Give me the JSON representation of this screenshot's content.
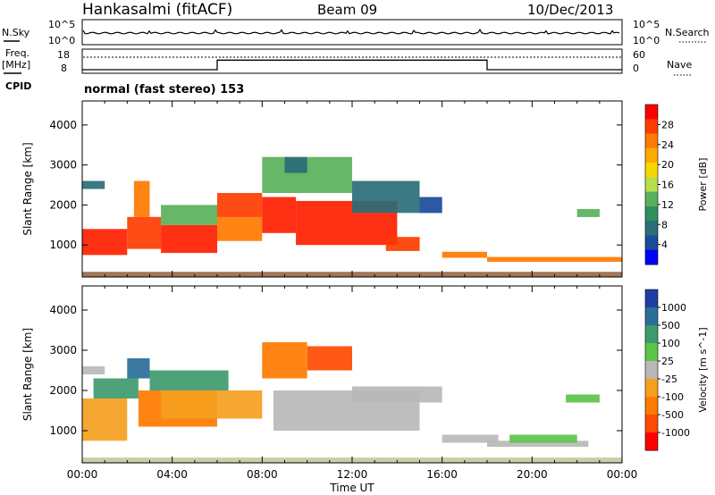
{
  "header": {
    "station": "Hankasalmi (fitACF)",
    "beam": "Beam 09",
    "date": "10/Dec/2013"
  },
  "status_panels": {
    "left_labels": {
      "nsky": "N.Sky",
      "freq": "Freq.",
      "freq_unit": "[MHz]",
      "cpid": "CPID"
    },
    "right_labels": {
      "nsearch": "N.Search",
      "nave": "Nave"
    },
    "noise_ticks_left": [
      "10^5",
      "10^0"
    ],
    "noise_ticks_right": [
      "10^5",
      "10^0"
    ],
    "freq_ticks": [
      "18",
      "8"
    ],
    "nave_ticks": [
      "60",
      "0"
    ],
    "cpid_text": "normal (fast stereo) 153",
    "freq_steps": [
      {
        "from": 0,
        "to": 6,
        "level": 0.12
      },
      {
        "from": 6,
        "to": 18,
        "level": 0.55
      },
      {
        "from": 18,
        "to": 24,
        "level": 0.12
      }
    ]
  },
  "chart_data": [
    {
      "type": "heatmap",
      "title": "Power",
      "xlabel": "",
      "ylabel": "Slant Range [km]",
      "xlim": [
        0,
        24
      ],
      "ylim": [
        200,
        4600
      ],
      "y_ticks": [
        1000,
        2000,
        3000,
        4000
      ],
      "colorbar": {
        "label": "Power [dB]",
        "ticks": [
          "28",
          "24",
          "20",
          "16",
          "12",
          "8",
          "4"
        ],
        "colors": [
          "#ff0000",
          "#ff3c00",
          "#ff7a00",
          "#ffaa00",
          "#f5d800",
          "#b5e04a",
          "#5bb05b",
          "#2f8f5e",
          "#2a6e78",
          "#1a4c9a",
          "#0000ff"
        ]
      },
      "regions": [
        {
          "t0": 0.0,
          "t1": 2.0,
          "r0": 750,
          "r1": 1400,
          "color": "#ff1e00"
        },
        {
          "t0": 2.0,
          "t1": 3.5,
          "r0": 900,
          "r1": 1700,
          "color": "#ff3c00"
        },
        {
          "t0": 2.3,
          "t1": 3.0,
          "r0": 1700,
          "r1": 2600,
          "color": "#ff7a00"
        },
        {
          "t0": 3.5,
          "t1": 6.0,
          "r0": 800,
          "r1": 1500,
          "color": "#ff1e00"
        },
        {
          "t0": 3.5,
          "t1": 6.0,
          "r0": 1500,
          "r1": 2000,
          "color": "#5bb05b"
        },
        {
          "t0": 6.0,
          "t1": 8.0,
          "r0": 1100,
          "r1": 1700,
          "color": "#ff7a00"
        },
        {
          "t0": 6.0,
          "t1": 8.0,
          "r0": 1700,
          "r1": 2300,
          "color": "#ff3c00"
        },
        {
          "t0": 8.0,
          "t1": 9.5,
          "r0": 1300,
          "r1": 2200,
          "color": "#ff1e00"
        },
        {
          "t0": 8.0,
          "t1": 12.0,
          "r0": 2300,
          "r1": 3200,
          "color": "#5bb05b"
        },
        {
          "t0": 9.0,
          "t1": 10.0,
          "r0": 2800,
          "r1": 3200,
          "color": "#2a6e78"
        },
        {
          "t0": 9.5,
          "t1": 14.0,
          "r0": 1000,
          "r1": 2100,
          "color": "#ff1e00"
        },
        {
          "t0": 12.0,
          "t1": 15.0,
          "r0": 1800,
          "r1": 2600,
          "color": "#2a6e78"
        },
        {
          "t0": 13.5,
          "t1": 15.0,
          "r0": 850,
          "r1": 1200,
          "color": "#ff3c00"
        },
        {
          "t0": 15.0,
          "t1": 16.0,
          "r0": 1800,
          "r1": 2200,
          "color": "#1a4c9a"
        },
        {
          "t0": 16.0,
          "t1": 18.0,
          "r0": 680,
          "r1": 830,
          "color": "#ff7a00"
        },
        {
          "t0": 18.0,
          "t1": 24.0,
          "r0": 580,
          "r1": 700,
          "color": "#ff7a00"
        },
        {
          "t0": 0.0,
          "t1": 24.0,
          "r0": 200,
          "r1": 330,
          "color": "#9a6a4a"
        },
        {
          "t0": 0.0,
          "t1": 1.0,
          "r0": 2400,
          "r1": 2600,
          "color": "#2a6e78"
        },
        {
          "t0": 22.0,
          "t1": 23.0,
          "r0": 1700,
          "r1": 1900,
          "color": "#5bb05b"
        }
      ]
    },
    {
      "type": "heatmap",
      "title": "Velocity",
      "xlabel": "Time UT",
      "ylabel": "Slant Range [km]",
      "xlim": [
        0,
        24
      ],
      "ylim": [
        200,
        4600
      ],
      "x_ticks": [
        "00:00",
        "04:00",
        "08:00",
        "12:00",
        "16:00",
        "20:00",
        "00:00"
      ],
      "y_ticks": [
        1000,
        2000,
        3000,
        4000
      ],
      "colorbar": {
        "label": "Velocity [m s^-1]",
        "ticks": [
          "1000",
          "500",
          "100",
          "25",
          "-25",
          "-100",
          "-500",
          "-1000"
        ],
        "colors": [
          "#1f3fa6",
          "#2a6e9a",
          "#3f9a6f",
          "#5cc44a",
          "#b8b8b8",
          "#f5a020",
          "#ff7a00",
          "#ff4a00",
          "#ff0000"
        ]
      },
      "regions": [
        {
          "t0": 0.0,
          "t1": 2.0,
          "r0": 750,
          "r1": 1800,
          "color": "#f5a020"
        },
        {
          "t0": 0.5,
          "t1": 2.5,
          "r0": 1800,
          "r1": 2300,
          "color": "#3f9a6f"
        },
        {
          "t0": 2.0,
          "t1": 3.0,
          "r0": 2300,
          "r1": 2800,
          "color": "#2a6e9a"
        },
        {
          "t0": 2.5,
          "t1": 6.0,
          "r0": 1100,
          "r1": 2000,
          "color": "#ff7a00"
        },
        {
          "t0": 3.5,
          "t1": 6.0,
          "r0": 1300,
          "r1": 2000,
          "color": "#f5a020"
        },
        {
          "t0": 3.0,
          "t1": 6.5,
          "r0": 2000,
          "r1": 2500,
          "color": "#3f9a6f"
        },
        {
          "t0": 6.0,
          "t1": 8.0,
          "r0": 1300,
          "r1": 2000,
          "color": "#f5a020"
        },
        {
          "t0": 8.0,
          "t1": 10.0,
          "r0": 2300,
          "r1": 3200,
          "color": "#ff7a00"
        },
        {
          "t0": 10.0,
          "t1": 12.0,
          "r0": 2500,
          "r1": 3100,
          "color": "#ff4a00"
        },
        {
          "t0": 8.5,
          "t1": 15.0,
          "r0": 1000,
          "r1": 2000,
          "color": "#b8b8b8"
        },
        {
          "t0": 12.0,
          "t1": 16.0,
          "r0": 1700,
          "r1": 2100,
          "color": "#b8b8b8"
        },
        {
          "t0": 16.0,
          "t1": 18.5,
          "r0": 700,
          "r1": 900,
          "color": "#b8b8b8"
        },
        {
          "t0": 18.0,
          "t1": 22.5,
          "r0": 600,
          "r1": 750,
          "color": "#b8b8b8"
        },
        {
          "t0": 19.0,
          "t1": 22.0,
          "r0": 700,
          "r1": 900,
          "color": "#5cc44a"
        },
        {
          "t0": 0.0,
          "t1": 24.0,
          "r0": 200,
          "r1": 330,
          "color": "#c8c8a0"
        },
        {
          "t0": 21.5,
          "t1": 23.0,
          "r0": 1700,
          "r1": 1900,
          "color": "#5cc44a"
        },
        {
          "t0": 0.0,
          "t1": 1.0,
          "r0": 2400,
          "r1": 2600,
          "color": "#b8b8b8"
        }
      ]
    }
  ]
}
